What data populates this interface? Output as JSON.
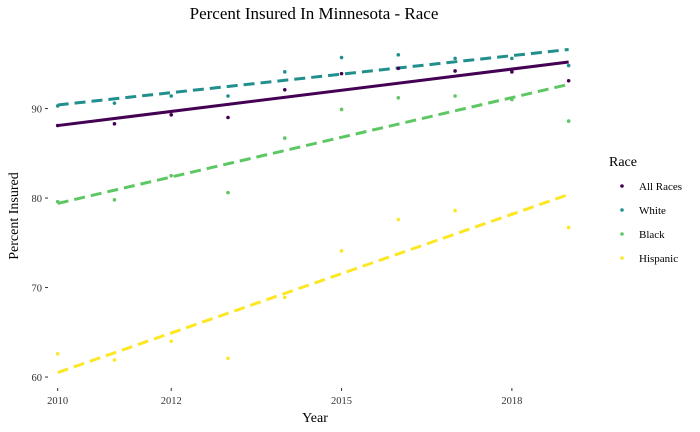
{
  "chart_data": {
    "type": "scatter",
    "title": "Percent Insured In Minnesota - Race",
    "xlabel": "Year",
    "ylabel": "Percent Insured",
    "xlim": [
      2009.9,
      2019.2
    ],
    "ylim": [
      59,
      99
    ],
    "x_ticks": [
      2010,
      2012,
      2015,
      2018
    ],
    "x_tick_labels": [
      "2010",
      "2012",
      "2015",
      "2018"
    ],
    "y_ticks": [
      60,
      70,
      80,
      90
    ],
    "y_tick_labels": [
      "60",
      "70",
      "80",
      "90"
    ],
    "grid": false,
    "legend": {
      "title": "Race",
      "position": "right"
    },
    "series": [
      {
        "name": "All Races",
        "color": "#440154",
        "line_style": "solid",
        "x": [
          2010,
          2011,
          2012,
          2013,
          2014,
          2015,
          2016,
          2017,
          2018,
          2019
        ],
        "y": [
          88.1,
          88.3,
          89.3,
          89.0,
          92.1,
          93.9,
          94.5,
          94.2,
          94.1,
          93.1
        ],
        "fit": [
          88.1,
          95.2
        ]
      },
      {
        "name": "White",
        "color": "#21908C",
        "line_style": "dashed",
        "x": [
          2010,
          2011,
          2012,
          2013,
          2014,
          2015,
          2016,
          2017,
          2018,
          2019
        ],
        "y": [
          90.3,
          90.6,
          91.4,
          91.4,
          94.1,
          95.7,
          96.0,
          95.6,
          95.6,
          94.8
        ],
        "fit": [
          90.4,
          96.6
        ]
      },
      {
        "name": "Black",
        "color": "#5DC863",
        "line_style": "dashed",
        "x": [
          2010,
          2011,
          2012,
          2013,
          2014,
          2015,
          2016,
          2017,
          2018,
          2019
        ],
        "y": [
          79.6,
          79.8,
          82.5,
          80.6,
          86.7,
          89.9,
          91.2,
          91.4,
          91.0,
          88.6
        ],
        "fit": [
          79.4,
          92.7
        ]
      },
      {
        "name": "Hispanic",
        "color": "#FDE725",
        "line_style": "dashed",
        "x": [
          2010,
          2011,
          2012,
          2013,
          2014,
          2015,
          2016,
          2017,
          2018,
          2019
        ],
        "y": [
          62.6,
          61.9,
          64.0,
          62.1,
          68.9,
          74.1,
          77.6,
          78.6,
          78.2,
          76.7
        ],
        "fit": [
          60.5,
          80.4
        ]
      }
    ]
  }
}
